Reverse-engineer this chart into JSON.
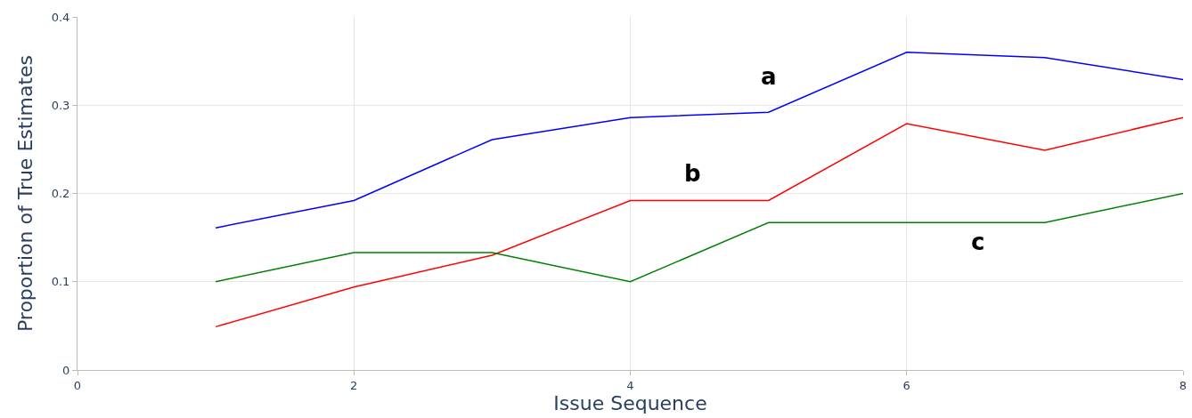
{
  "chart_data": {
    "type": "line",
    "xlabel": "Issue Sequence",
    "ylabel": "Proportion of True Estimates",
    "x": [
      1,
      2,
      3,
      4,
      5,
      6,
      7,
      8
    ],
    "series": [
      {
        "name": "a",
        "color": "#0000ff",
        "values": [
          0.161,
          0.192,
          0.261,
          0.286,
          0.292,
          0.36,
          0.354,
          0.329
        ]
      },
      {
        "name": "b",
        "color": "#ff0000",
        "values": [
          0.049,
          0.094,
          0.13,
          0.192,
          0.192,
          0.279,
          0.249,
          0.286
        ]
      },
      {
        "name": "c",
        "color": "#008000",
        "values": [
          0.1,
          0.133,
          0.133,
          0.1,
          0.167,
          0.167,
          0.167,
          0.2
        ]
      }
    ],
    "xlim": [
      0,
      8
    ],
    "xticks": [
      0,
      2,
      4,
      6,
      8
    ],
    "ylim": [
      0,
      0.4
    ],
    "yticks": [
      0,
      0.1,
      0.2,
      0.3,
      0.4
    ],
    "grid": true,
    "legend": false,
    "marker": "none",
    "line_style": "solid"
  }
}
